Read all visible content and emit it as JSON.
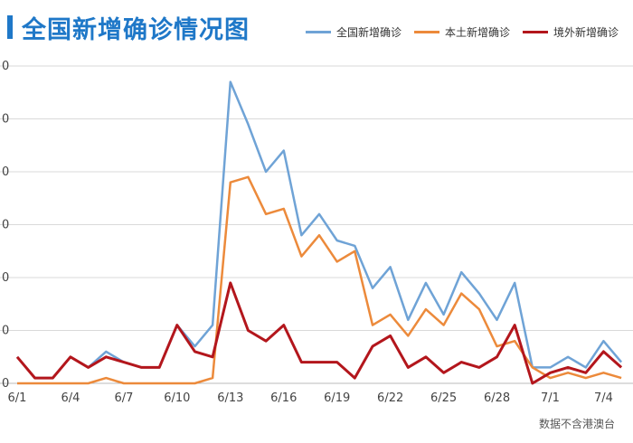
{
  "title": "全国新增确诊情况图",
  "source_note": "数据不含港澳台",
  "colors": {
    "accent": "#1f78c8",
    "national": "#6fa3d6",
    "local": "#ec8a3b",
    "imported": "#b3161c",
    "grid": "#d9d9d9"
  },
  "legend": [
    {
      "label": "全国新增确诊",
      "color": "#6fa3d6"
    },
    {
      "label": "本土新增确诊",
      "color": "#ec8a3b"
    },
    {
      "label": "境外新增确诊",
      "color": "#b3161c"
    }
  ],
  "chart_data": {
    "type": "line",
    "title": "全国新增确诊情况图",
    "xlabel": "",
    "ylabel": "",
    "x": [
      "6/1",
      "6/2",
      "6/3",
      "6/4",
      "6/5",
      "6/6",
      "6/7",
      "6/8",
      "6/9",
      "6/10",
      "6/11",
      "6/12",
      "6/13",
      "6/14",
      "6/15",
      "6/16",
      "6/17",
      "6/18",
      "6/19",
      "6/20",
      "6/21",
      "6/22",
      "6/23",
      "6/24",
      "6/25",
      "6/26",
      "6/27",
      "6/28",
      "6/29",
      "6/30",
      "7/1",
      "7/2",
      "7/3",
      "7/4",
      "7/5"
    ],
    "x_tick_labels": [
      "6/1",
      "6/4",
      "6/7",
      "6/10",
      "6/13",
      "6/16",
      "6/19",
      "6/22",
      "6/25",
      "6/28",
      "7/1",
      "7/4"
    ],
    "y_tick_labels_visible": [
      "0",
      "0",
      "0",
      "0",
      "0",
      "0",
      "0"
    ],
    "ylim": [
      0,
      60
    ],
    "grid": true,
    "legend_position": "top-right",
    "series": [
      {
        "name": "全国新增确诊",
        "values": [
          5,
          1,
          1,
          5,
          3,
          6,
          4,
          3,
          3,
          11,
          7,
          11,
          57,
          49,
          40,
          44,
          28,
          32,
          27,
          26,
          18,
          22,
          12,
          19,
          13,
          21,
          17,
          12,
          19,
          3,
          3,
          5,
          3,
          8,
          4
        ]
      },
      {
        "name": "本土新增确诊",
        "values": [
          0,
          0,
          0,
          0,
          0,
          1,
          0,
          0,
          0,
          0,
          0,
          1,
          38,
          39,
          32,
          33,
          24,
          28,
          23,
          25,
          11,
          13,
          9,
          14,
          11,
          17,
          14,
          7,
          8,
          3,
          1,
          2,
          1,
          2,
          1
        ]
      },
      {
        "name": "境外新增确诊",
        "values": [
          5,
          1,
          1,
          5,
          3,
          5,
          4,
          3,
          3,
          11,
          6,
          5,
          19,
          10,
          8,
          11,
          4,
          4,
          4,
          1,
          7,
          9,
          3,
          5,
          2,
          4,
          3,
          5,
          11,
          0,
          2,
          3,
          2,
          6,
          3
        ]
      }
    ]
  }
}
